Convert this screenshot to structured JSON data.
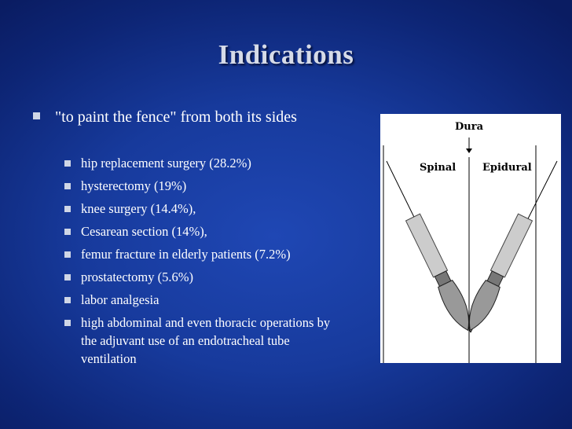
{
  "title": "Indications",
  "bullets": [
    {
      "text": "\"to paint the fence\" from both its sides",
      "sub": [
        "hip replacement surgery (28.2%)",
        "hysterectomy (19%)",
        "knee surgery (14.4%),",
        "Cesarean section (14%),",
        "femur fracture in elderly patients (7.2%)",
        "prostatectomy (5.6%)",
        "labor analgesia",
        "high abdominal and even thoracic operations by the adjuvant use of an endotracheal tube ventilation"
      ]
    }
  ],
  "figure": {
    "top_label": "Dura",
    "left_label": "Spinal",
    "right_label": "Epidural"
  }
}
